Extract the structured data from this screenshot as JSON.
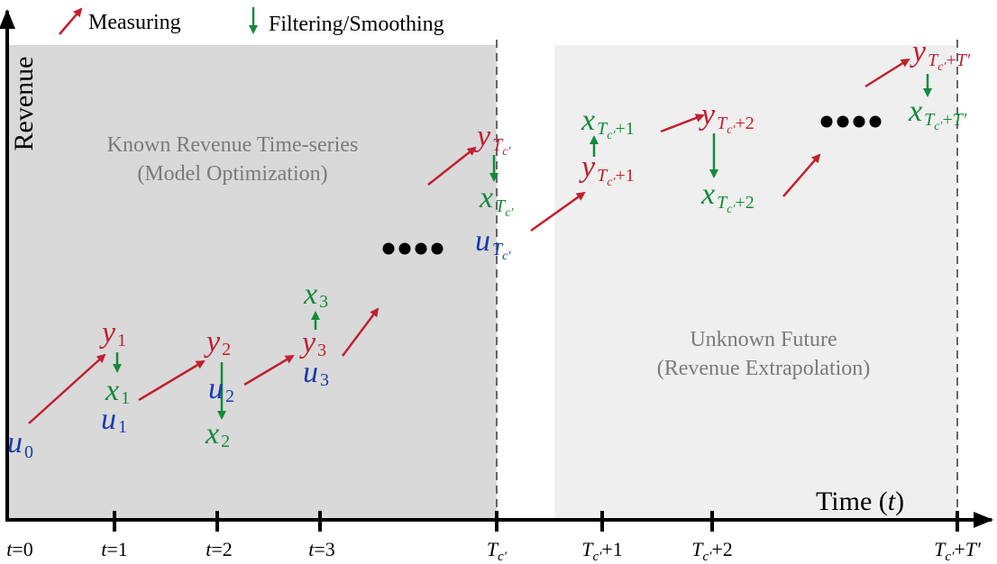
{
  "legend": {
    "measuring": "Measuring",
    "filtering": "Filtering/Smoothing"
  },
  "axes": {
    "y_label": "Revenue",
    "x_label_main": "Time (",
    "x_label_var": "t",
    "x_label_close": ")"
  },
  "regions": {
    "known": {
      "line1": "Known Revenue Time-series",
      "line2": "(Model Optimization)"
    },
    "unknown": {
      "line1": "Unknown Future",
      "line2": "(Revenue Extrapolation)"
    }
  },
  "ticks": [
    "t=0",
    "t=1",
    "t=2",
    "t=3",
    "T_c'",
    "T_c'+1",
    "T_c'+2",
    "T_c'+T'"
  ],
  "nodes": {
    "u0": {
      "base": "u",
      "sub": "0"
    },
    "y1": {
      "base": "y",
      "sub": "1"
    },
    "x1": {
      "base": "x",
      "sub": "1"
    },
    "u1": {
      "base": "u",
      "sub": "1"
    },
    "y2": {
      "base": "y",
      "sub": "2"
    },
    "u2": {
      "base": "u",
      "sub": "2"
    },
    "x2": {
      "base": "x",
      "sub": "2"
    },
    "x3": {
      "base": "x",
      "sub": "3"
    },
    "y3": {
      "base": "y",
      "sub": "3"
    },
    "u3": {
      "base": "u",
      "sub": "3"
    },
    "yTc": {
      "base": "y",
      "sub": "Tc'"
    },
    "xTc": {
      "base": "x",
      "sub": "Tc'"
    },
    "uTc": {
      "base": "u",
      "sub": "Tc'"
    },
    "xTc1": {
      "base": "x",
      "sub": "Tc'+1"
    },
    "yTc1": {
      "base": "y",
      "sub": "Tc'+1"
    },
    "yTc2": {
      "base": "y",
      "sub": "Tc'+2"
    },
    "xTc2": {
      "base": "x",
      "sub": "Tc'+2"
    },
    "yTcT": {
      "base": "y",
      "sub": "Tc'+T'"
    },
    "xTcT": {
      "base": "x",
      "sub": "Tc'+T'"
    }
  },
  "colors": {
    "measure": "#c0202f",
    "filter": "#138a3a",
    "control": "#1739b0",
    "known_bg": "#d9d9d9",
    "unknown_bg": "#efefef"
  }
}
